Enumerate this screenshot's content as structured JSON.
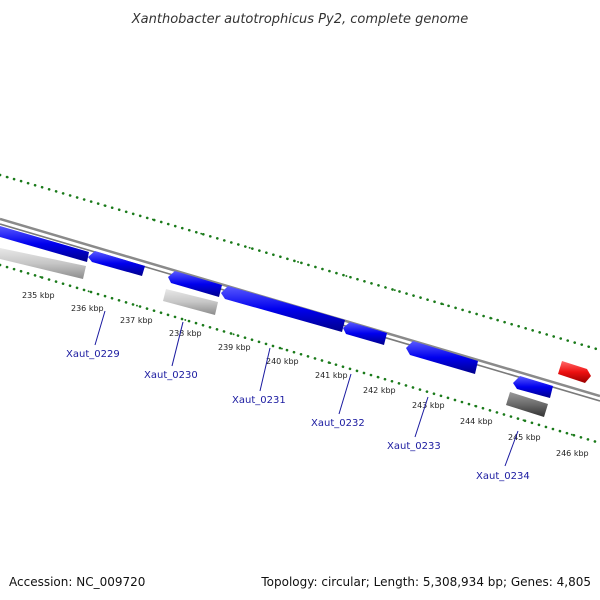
{
  "title": "Xanthobacter autotrophicus Py2, complete genome",
  "footer": {
    "accession": "Accession: NC_009720",
    "summary": "Topology: circular; Length: 5,308,934 bp; Genes: 4,805"
  },
  "colors": {
    "gene_forward": "#1a1adb",
    "gene_reverse": "#0000ee",
    "gene_red": "#ee1111",
    "gene_light_gray": "#c6c6c6",
    "gene_dark_gray": "#6a6a6a",
    "backbone": "#8a8a8a",
    "ticks": "#1a7a1a",
    "label": "#1a1aa0"
  },
  "scale": {
    "unit": "kbp",
    "ticks": [
      {
        "kbp": 235,
        "label": "235 kbp"
      },
      {
        "kbp": 236,
        "label": "236 kbp"
      },
      {
        "kbp": 237,
        "label": "237 kbp"
      },
      {
        "kbp": 238,
        "label": "238 kbp"
      },
      {
        "kbp": 239,
        "label": "239 kbp"
      },
      {
        "kbp": 240,
        "label": "240 kbp"
      },
      {
        "kbp": 241,
        "label": "241 kbp"
      },
      {
        "kbp": 242,
        "label": "242 kbp"
      },
      {
        "kbp": 243,
        "label": "243 kbp"
      },
      {
        "kbp": 244,
        "label": "244 kbp"
      },
      {
        "kbp": 245,
        "label": "245 kbp"
      },
      {
        "kbp": 246,
        "label": "246 kbp"
      }
    ]
  },
  "gene_labels": [
    {
      "name": "Xaut_0229"
    },
    {
      "name": "Xaut_0230"
    },
    {
      "name": "Xaut_0231"
    },
    {
      "name": "Xaut_0232"
    },
    {
      "name": "Xaut_0233"
    },
    {
      "name": "Xaut_0234"
    }
  ]
}
